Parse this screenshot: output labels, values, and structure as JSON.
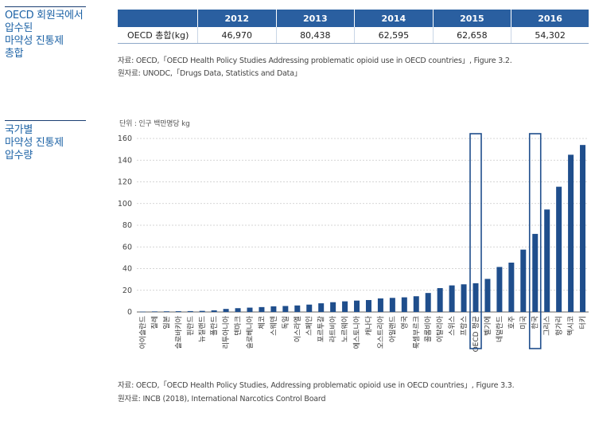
{
  "section1": {
    "title": "OECD 회원국에서\n압수된\n마약성 진통제\n총합",
    "table": {
      "columns": [
        "",
        "2012",
        "2013",
        "2014",
        "2015",
        "2016"
      ],
      "row": [
        "OECD 총합(kg)",
        "46,970",
        "80,438",
        "62,595",
        "62,658",
        "54,302"
      ]
    },
    "source": "자료: OECD,「OECD Health Policy Studies Addressing problematic opioid use in OECD countries」, Figure 3.2.",
    "original_source": "원자료: UNODC,「Drugs Data, Statistics and Data」"
  },
  "section2": {
    "title": "국가별\n마약성 진통제\n압수량",
    "source": "자료: OECD,「OECD Health Policy Studies, Addressing problematic opioid use in OECD countries」, Figure 3.3.",
    "original_source": "원자료: INCB (2018), International Narcotics Control Board"
  },
  "chart_data": {
    "type": "bar",
    "unit_label": "단위 : 인구 백만명당 kg",
    "ylim": [
      0,
      160
    ],
    "yticks": [
      0,
      20,
      40,
      60,
      80,
      100,
      120,
      140,
      160
    ],
    "grid": true,
    "bar_color": "#1f4e8c",
    "highlight_color": "#1f4e8c",
    "highlighted": [
      "OECD 평균",
      "한국"
    ],
    "categories": [
      "아이슬란드",
      "칠레",
      "일본",
      "슬로바키아",
      "핀란드",
      "뉴질랜드",
      "폴란드",
      "리투아니아",
      "덴마크",
      "슬로베니아",
      "체코",
      "스웨덴",
      "독일",
      "이스라엘",
      "스페인",
      "포르투갈",
      "라트비아",
      "노르웨이",
      "에스토니아",
      "캐나다",
      "오스트리아",
      "아일랜드",
      "영국",
      "룩셈부르크",
      "콜롬비아",
      "이탈리아",
      "스위스",
      "프랑스",
      "OECD 평균",
      "벨기에",
      "네덜란드",
      "호주",
      "미국",
      "한국",
      "그리스",
      "헝가리",
      "멕시코",
      "터키"
    ],
    "values": [
      0.3,
      0.5,
      0.6,
      0.7,
      0.8,
      1.0,
      1.5,
      2.8,
      3.5,
      4.0,
      4.5,
      5.2,
      5.5,
      6.0,
      6.8,
      8.0,
      9.0,
      9.8,
      10.5,
      11.0,
      12.5,
      13.0,
      13.5,
      14.5,
      17.5,
      22.0,
      24.5,
      25.5,
      26.5,
      30.5,
      41.5,
      45.5,
      57.5,
      72.0,
      94.5,
      115.5,
      145.0,
      154.0
    ]
  }
}
